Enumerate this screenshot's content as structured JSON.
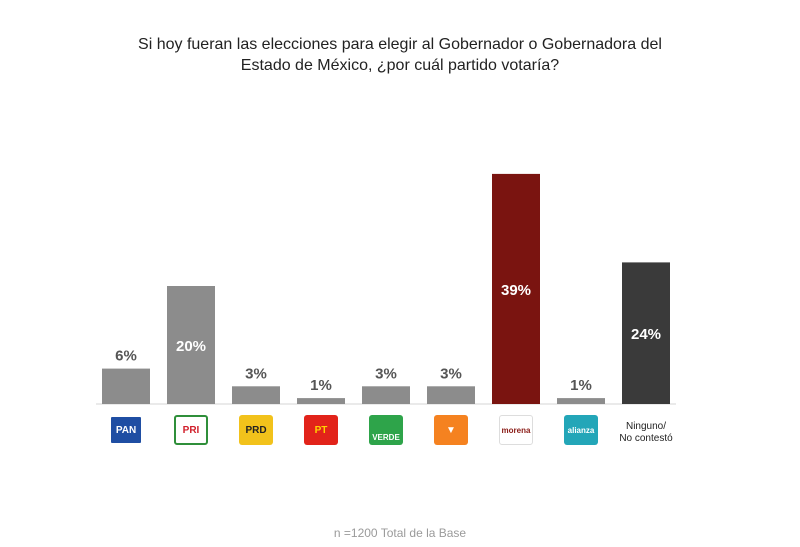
{
  "title_lines": [
    "Si hoy fueran las elecciones para elegir al Gobernador o Gobernadora del",
    "Estado de México,  ¿por cuál partido votaría?"
  ],
  "note": "n =1200 Total de la Base",
  "colors": {
    "gray": "#8c8c8c",
    "morena": "#7a1410",
    "dark": "#3a3a3a"
  },
  "logos": [
    {
      "name": "pan-logo",
      "text": "PAN"
    },
    {
      "name": "pri-logo",
      "text": "PRI"
    },
    {
      "name": "prd-logo",
      "text": "PRD"
    },
    {
      "name": "pt-logo",
      "text": "PT"
    },
    {
      "name": "verde-logo",
      "text": "VERDE"
    },
    {
      "name": "movimiento-ciudadano-logo",
      "text": ""
    },
    {
      "name": "morena-logo",
      "text": "morena"
    },
    {
      "name": "nueva-alianza-logo",
      "text": "alianza"
    }
  ],
  "other_label": [
    "Ninguno/",
    "No contestó"
  ],
  "chart_data": {
    "type": "bar",
    "categories": [
      "PAN",
      "PRI",
      "PRD",
      "PT",
      "VERDE",
      "MC",
      "MORENA",
      "NUEVA ALIANZA",
      "Ninguno/ No contestó"
    ],
    "values": [
      6,
      20,
      3,
      1,
      3,
      3,
      39,
      1,
      24
    ],
    "data_labels": [
      "6%",
      "20%",
      "3%",
      "1%",
      "3%",
      "3%",
      "39%",
      "1%",
      "24%"
    ],
    "bar_colors": [
      "#8c8c8c",
      "#8c8c8c",
      "#8c8c8c",
      "#8c8c8c",
      "#8c8c8c",
      "#8c8c8c",
      "#7a1410",
      "#8c8c8c",
      "#3a3a3a"
    ],
    "ylim": [
      0,
      40
    ],
    "grid": false,
    "legend": "none"
  }
}
